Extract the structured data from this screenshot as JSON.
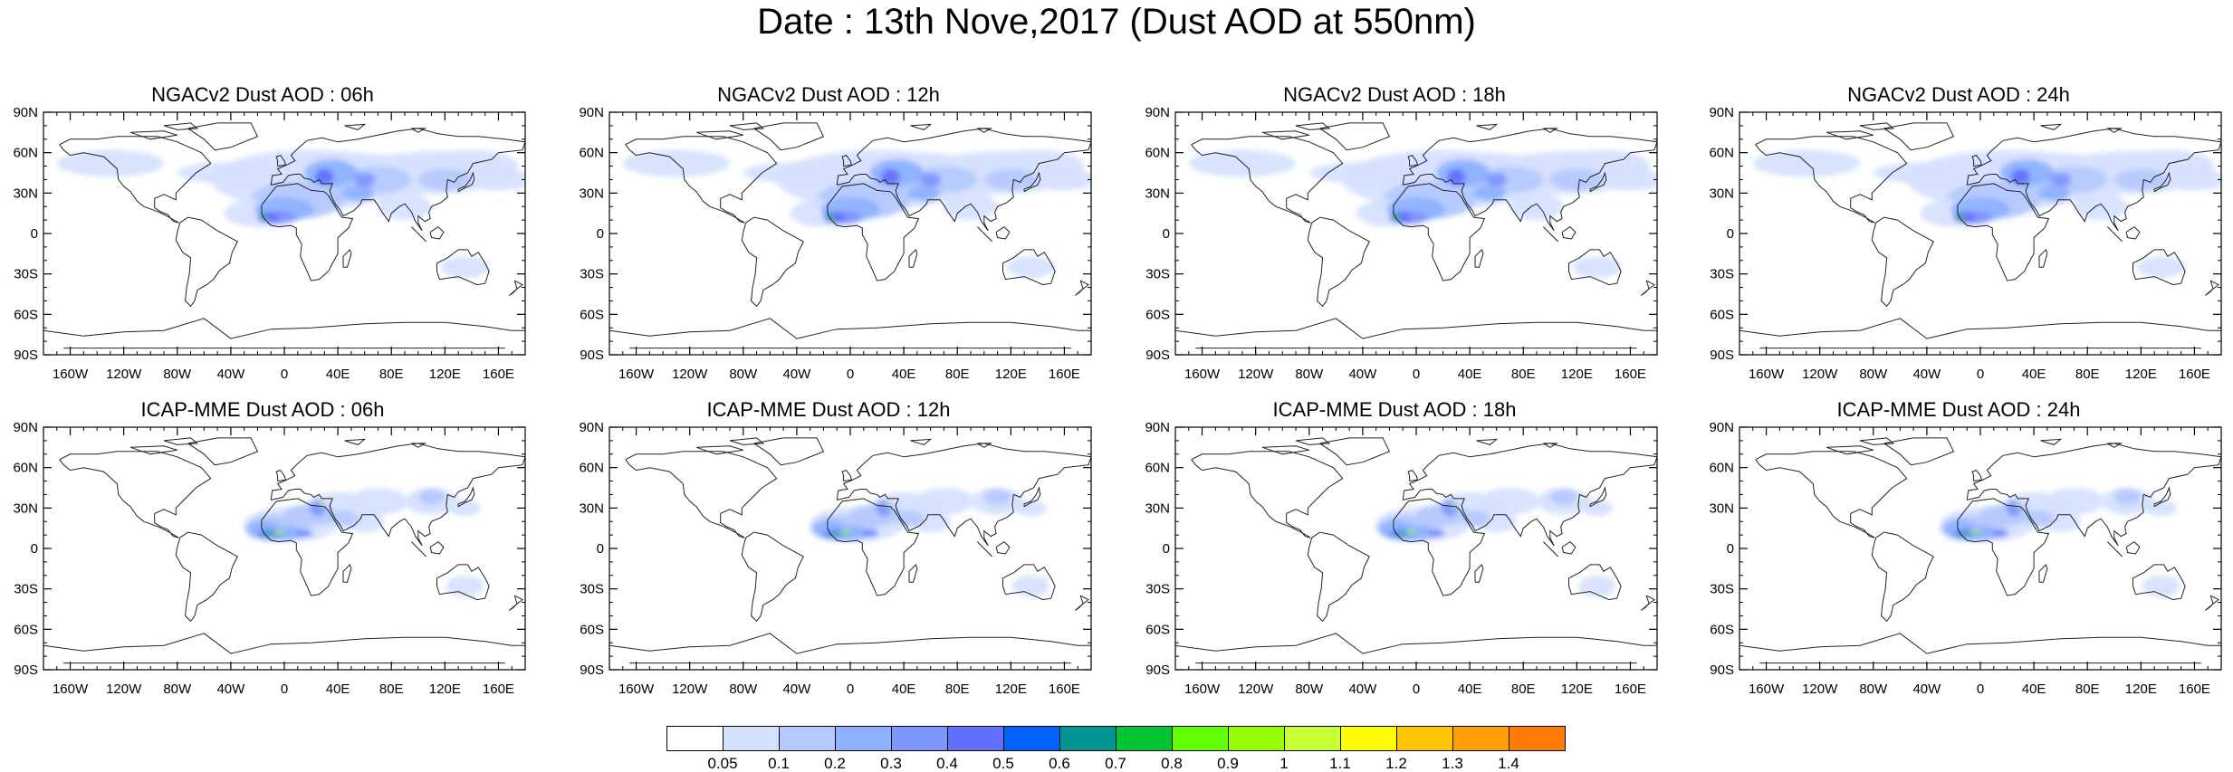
{
  "title": "Date : 13th Nove,2017 (Dust AOD at 550nm)",
  "lat_labels": [
    "90N",
    "60N",
    "30N",
    "0",
    "30S",
    "60S",
    "90S"
  ],
  "lon_labels": [
    "160W",
    "120W",
    "80W",
    "40W",
    "0",
    "40E",
    "80E",
    "120E",
    "160E"
  ],
  "panels": [
    {
      "title": "NGACv2 Dust AOD : 06h",
      "model": "NGACv2"
    },
    {
      "title": "NGACv2 Dust AOD : 12h",
      "model": "NGACv2"
    },
    {
      "title": "NGACv2 Dust AOD : 18h",
      "model": "NGACv2"
    },
    {
      "title": "NGACv2 Dust AOD : 24h",
      "model": "NGACv2"
    },
    {
      "title": "ICAP-MME Dust AOD : 06h",
      "model": "ICAP-MME"
    },
    {
      "title": "ICAP-MME Dust AOD : 12h",
      "model": "ICAP-MME"
    },
    {
      "title": "ICAP-MME Dust AOD : 18h",
      "model": "ICAP-MME"
    },
    {
      "title": "ICAP-MME Dust AOD : 24h",
      "model": "ICAP-MME"
    }
  ],
  "colorbar": {
    "labels": [
      "0.05",
      "0.1",
      "0.2",
      "0.3",
      "0.4",
      "0.5",
      "0.6",
      "0.7",
      "0.8",
      "0.9",
      "1",
      "1.1",
      "1.2",
      "1.3",
      "1.4"
    ],
    "colors": [
      "#ffffff",
      "#d6e2ff",
      "#b5c9ff",
      "#8eb2ff",
      "#7f96ff",
      "#6370ff",
      "#0063ff",
      "#009696",
      "#00c633",
      "#63ff00",
      "#96ff00",
      "#c6ff33",
      "#ffff00",
      "#ffc600",
      "#ffa000",
      "#ff7c00",
      "#ff1900"
    ]
  }
}
